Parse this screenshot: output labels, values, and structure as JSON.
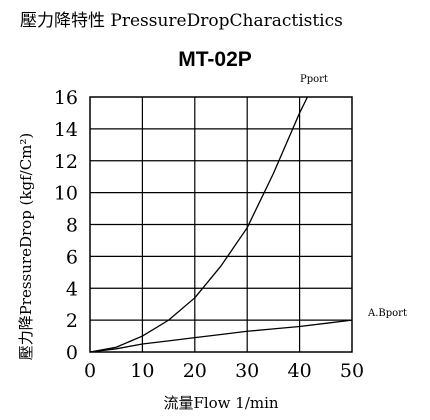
{
  "header": {
    "title": "壓力降特性 PressureDropCharactistics"
  },
  "chart_data": {
    "type": "line",
    "title": "MT-02P",
    "xlabel": "流量Flow 1/min",
    "ylabel": "壓力降PressureDrop (kgf/Cm²)",
    "xlim": [
      0,
      50
    ],
    "ylim": [
      0,
      16
    ],
    "x_ticks": [
      0,
      10,
      20,
      30,
      40,
      50
    ],
    "y_ticks": [
      0,
      2,
      4,
      6,
      8,
      10,
      12,
      14,
      16
    ],
    "grid": true,
    "series": [
      {
        "name": "Pport",
        "x": [
          0,
          5,
          10,
          15,
          20,
          25,
          30,
          35,
          40,
          41.5
        ],
        "y": [
          0,
          0.3,
          1.0,
          2.0,
          3.4,
          5.4,
          7.8,
          11.2,
          15.0,
          16.0
        ]
      },
      {
        "name": "A.Bport",
        "x": [
          0,
          5,
          10,
          15,
          20,
          25,
          30,
          35,
          40,
          45,
          50
        ],
        "y": [
          0,
          0.2,
          0.5,
          0.7,
          0.9,
          1.1,
          1.3,
          1.45,
          1.6,
          1.8,
          2.0
        ]
      }
    ]
  }
}
